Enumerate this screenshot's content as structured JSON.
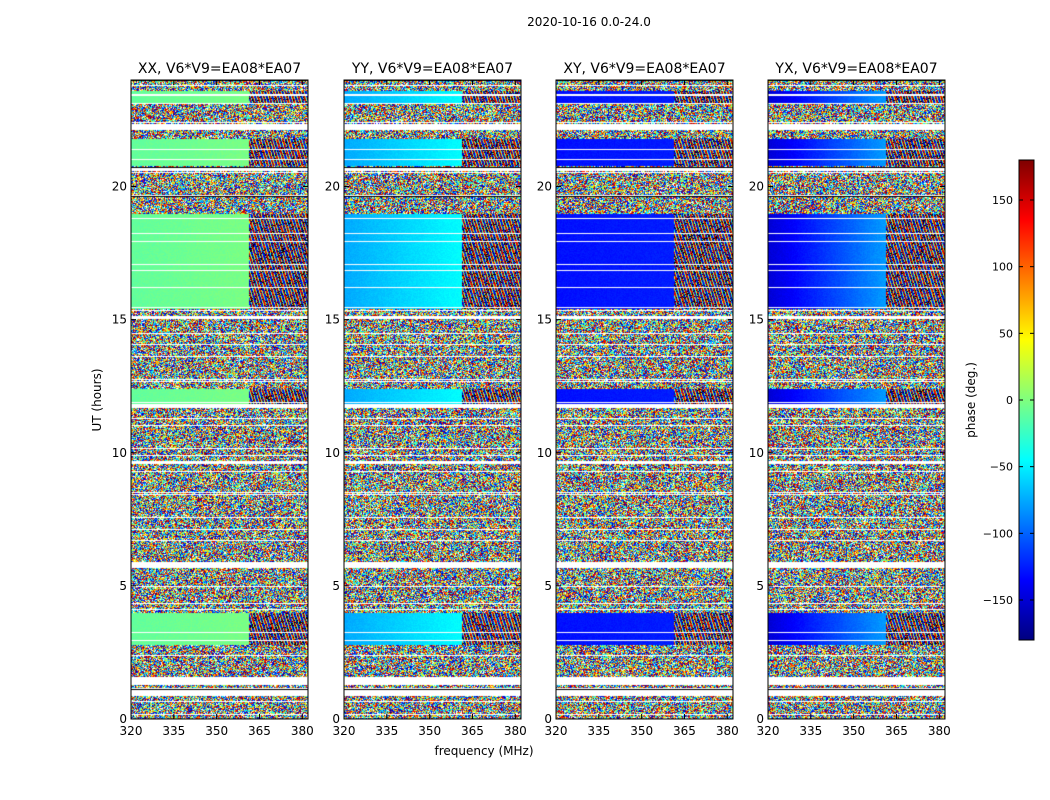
{
  "chart_data": {
    "type": "heatmap",
    "suptitle": "2020-10-16 0.0-24.0",
    "xlabel": "frequency (MHz)",
    "ylabel": "UT (hours)",
    "xlim": [
      320,
      382
    ],
    "ylim": [
      0,
      24
    ],
    "xticks": [
      320,
      335,
      350,
      365,
      380
    ],
    "yticks": [
      0,
      5,
      10,
      15,
      20
    ],
    "colorbar": {
      "label": "phase (deg.)",
      "range": [
        -180,
        180
      ],
      "ticks": [
        150,
        100,
        50,
        0,
        -50,
        -100,
        -150
      ],
      "tick_labels": [
        "150",
        "100",
        "50",
        "0",
        "−50",
        "−100",
        "−150"
      ],
      "colormap": [
        "#00007f",
        "#0000ff",
        "#007fff",
        "#00ffff",
        "#7fff7f",
        "#ffff00",
        "#ff7f00",
        "#ff0000",
        "#7f0000"
      ]
    },
    "panels": [
      {
        "title": "XX, V6*V9=EA08*EA07",
        "calibrator_phase_deg": -10,
        "phase_slope_deg": 8
      },
      {
        "title": "YY, V6*V9=EA08*EA07",
        "calibrator_phase_deg": -75,
        "phase_slope_deg": 30
      },
      {
        "title": "XY, V6*V9=EA08*EA07",
        "calibrator_phase_deg": -130,
        "phase_slope_deg": 5
      },
      {
        "title": "YX, V6*V9=EA08*EA07",
        "calibrator_phase_deg": -150,
        "phase_slope_deg": 70
      }
    ],
    "flagged_ut_ranges": [
      [
        0.9,
        1.2
      ],
      [
        1.3,
        1.55
      ],
      [
        5.7,
        5.9
      ],
      [
        9.6,
        9.7
      ],
      [
        11.7,
        11.85
      ],
      [
        15.05,
        15.15
      ],
      [
        20.6,
        20.75
      ],
      [
        22.15,
        22.35
      ],
      [
        23.4,
        23.5
      ]
    ],
    "calibrator_ut_ranges": [
      [
        2.8,
        4.0
      ],
      [
        11.8,
        12.4
      ],
      [
        15.4,
        19.0
      ],
      [
        20.8,
        21.8
      ],
      [
        23.1,
        23.6
      ]
    ]
  }
}
